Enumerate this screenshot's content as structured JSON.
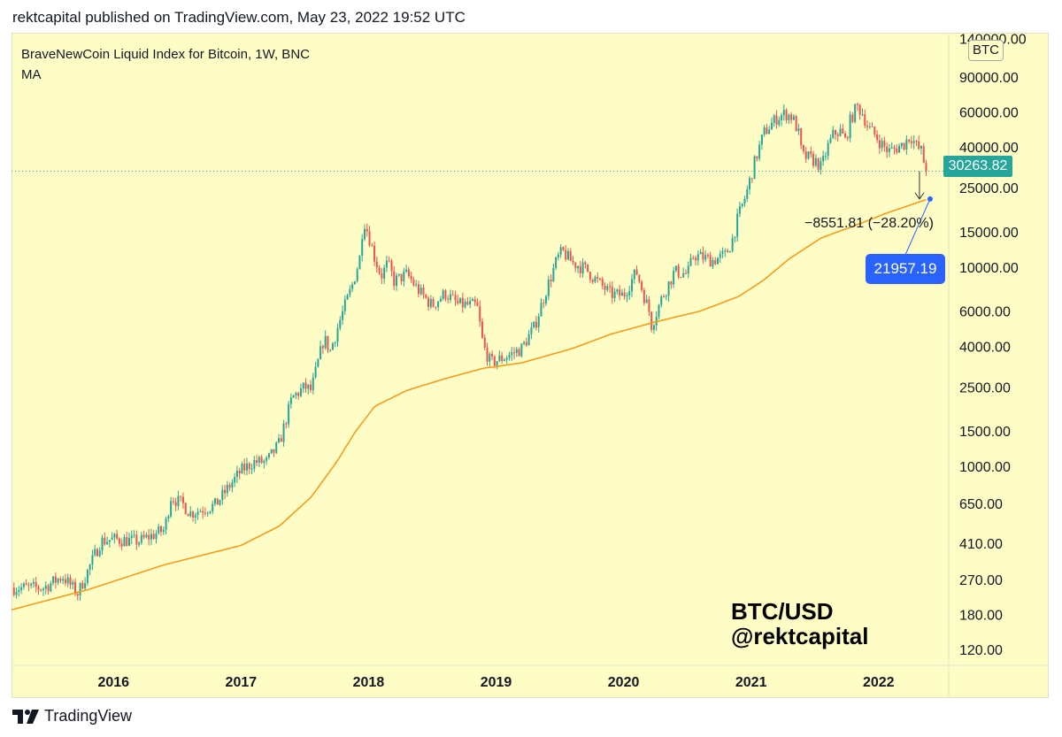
{
  "header": {
    "publisher": "rektcapital published on TradingView.com, May 23, 2022 19:52 UTC"
  },
  "legend": {
    "symbol": "BraveNewCoin Liquid Index for Bitcoin, 1W, BNC",
    "indicator": "MA"
  },
  "currency": "BTC",
  "watermark": {
    "line1": "BTC/USD",
    "line2": "@rektcapital"
  },
  "footer": {
    "brand": "TradingView",
    "logo_icon": "tradingview-logo-icon"
  },
  "colors": {
    "background": "#fefdc6",
    "up": "#26a69a",
    "down": "#ef5350",
    "ma": "#f59c1a",
    "target": "#2962ff"
  },
  "chart_data": {
    "type": "candlestick",
    "title": "BraveNewCoin Liquid Index for Bitcoin, 1W, BNC",
    "scale": "log",
    "ylim": [
      100,
      150000
    ],
    "x_range": [
      2015.2,
      2022.55
    ],
    "x_ticks": [
      {
        "year": 2016,
        "label": "2016"
      },
      {
        "year": 2017,
        "label": "2017"
      },
      {
        "year": 2018,
        "label": "2018"
      },
      {
        "year": 2019,
        "label": "2019"
      },
      {
        "year": 2020,
        "label": "2020"
      },
      {
        "year": 2021,
        "label": "2021"
      },
      {
        "year": 2022,
        "label": "2022"
      }
    ],
    "y_ticks": [
      {
        "value": 140000,
        "label": "140000.00"
      },
      {
        "value": 90000,
        "label": "90000.00"
      },
      {
        "value": 60000,
        "label": "60000.00"
      },
      {
        "value": 40000,
        "label": "40000.00"
      },
      {
        "value": 25000,
        "label": "25000.00"
      },
      {
        "value": 15000,
        "label": "15000.00"
      },
      {
        "value": 10000,
        "label": "10000.00"
      },
      {
        "value": 6000,
        "label": "6000.00"
      },
      {
        "value": 4000,
        "label": "4000.00"
      },
      {
        "value": 2500,
        "label": "2500.00"
      },
      {
        "value": 1500,
        "label": "1500.00"
      },
      {
        "value": 1000,
        "label": "1000.00"
      },
      {
        "value": 650,
        "label": "650.00"
      },
      {
        "value": 410,
        "label": "410.00"
      },
      {
        "value": 270,
        "label": "270.00"
      },
      {
        "value": 180,
        "label": "180.00"
      },
      {
        "value": 120,
        "label": "120.00"
      }
    ],
    "price_anchors": [
      [
        2015.2,
        245
      ],
      [
        2015.45,
        245
      ],
      [
        2015.6,
        280
      ],
      [
        2015.72,
        230
      ],
      [
        2015.8,
        300
      ],
      [
        2015.9,
        420
      ],
      [
        2016.0,
        430
      ],
      [
        2016.2,
        420
      ],
      [
        2016.4,
        480
      ],
      [
        2016.45,
        700
      ],
      [
        2016.55,
        640
      ],
      [
        2016.6,
        580
      ],
      [
        2016.8,
        640
      ],
      [
        2016.9,
        780
      ],
      [
        2017.0,
        950
      ],
      [
        2017.1,
        1050
      ],
      [
        2017.2,
        1050
      ],
      [
        2017.3,
        1300
      ],
      [
        2017.4,
        2200
      ],
      [
        2017.5,
        2500
      ],
      [
        2017.55,
        2400
      ],
      [
        2017.65,
        4400
      ],
      [
        2017.7,
        3800
      ],
      [
        2017.8,
        6000
      ],
      [
        2017.87,
        8000
      ],
      [
        2017.93,
        11000
      ],
      [
        2017.96,
        17500
      ],
      [
        2018.0,
        14500
      ],
      [
        2018.05,
        11000
      ],
      [
        2018.1,
        9000
      ],
      [
        2018.15,
        10500
      ],
      [
        2018.2,
        8500
      ],
      [
        2018.3,
        9200
      ],
      [
        2018.4,
        7500
      ],
      [
        2018.5,
        6400
      ],
      [
        2018.6,
        7400
      ],
      [
        2018.7,
        6500
      ],
      [
        2018.85,
        6400
      ],
      [
        2018.9,
        4000
      ],
      [
        2018.96,
        3300
      ],
      [
        2019.1,
        3600
      ],
      [
        2019.2,
        3900
      ],
      [
        2019.3,
        5000
      ],
      [
        2019.4,
        7900
      ],
      [
        2019.48,
        11000
      ],
      [
        2019.52,
        12000
      ],
      [
        2019.6,
        10500
      ],
      [
        2019.7,
        9800
      ],
      [
        2019.8,
        8400
      ],
      [
        2019.9,
        7300
      ],
      [
        2020.0,
        7200
      ],
      [
        2020.1,
        9500
      ],
      [
        2020.2,
        6000
      ],
      [
        2020.22,
        5100
      ],
      [
        2020.3,
        7000
      ],
      [
        2020.4,
        9500
      ],
      [
        2020.5,
        9200
      ],
      [
        2020.55,
        11500
      ],
      [
        2020.7,
        10800
      ],
      [
        2020.8,
        11500
      ],
      [
        2020.85,
        13500
      ],
      [
        2020.9,
        18000
      ],
      [
        2020.96,
        23000
      ],
      [
        2021.03,
        34000
      ],
      [
        2021.1,
        47000
      ],
      [
        2021.2,
        56000
      ],
      [
        2021.27,
        59000
      ],
      [
        2021.32,
        57000
      ],
      [
        2021.37,
        48000
      ],
      [
        2021.4,
        36000
      ],
      [
        2021.45,
        35500
      ],
      [
        2021.52,
        33500
      ],
      [
        2021.55,
        31500
      ],
      [
        2021.6,
        40000
      ],
      [
        2021.65,
        47000
      ],
      [
        2021.7,
        48000
      ],
      [
        2021.74,
        43000
      ],
      [
        2021.78,
        55000
      ],
      [
        2021.83,
        64000
      ],
      [
        2021.87,
        60000
      ],
      [
        2021.92,
        50000
      ],
      [
        2021.96,
        47000
      ],
      [
        2022.03,
        41000
      ],
      [
        2022.08,
        38000
      ],
      [
        2022.12,
        39000
      ],
      [
        2022.2,
        41500
      ],
      [
        2022.25,
        46000
      ],
      [
        2022.3,
        40000
      ],
      [
        2022.34,
        38000
      ],
      [
        2022.36,
        32000
      ],
      [
        2022.38,
        29000
      ],
      [
        2022.39,
        30263.82
      ]
    ],
    "ma_anchors": [
      [
        2015.2,
        190
      ],
      [
        2015.8,
        240
      ],
      [
        2016.4,
        320
      ],
      [
        2017.0,
        400
      ],
      [
        2017.3,
        500
      ],
      [
        2017.55,
        700
      ],
      [
        2017.75,
        1050
      ],
      [
        2017.9,
        1500
      ],
      [
        2018.05,
        2000
      ],
      [
        2018.3,
        2400
      ],
      [
        2018.6,
        2750
      ],
      [
        2018.9,
        3100
      ],
      [
        2019.2,
        3300
      ],
      [
        2019.6,
        3900
      ],
      [
        2019.9,
        4600
      ],
      [
        2020.25,
        5300
      ],
      [
        2020.6,
        6000
      ],
      [
        2020.9,
        7100
      ],
      [
        2021.1,
        8600
      ],
      [
        2021.3,
        11000
      ],
      [
        2021.55,
        14000
      ],
      [
        2021.8,
        16000
      ],
      [
        2022.05,
        18500
      ],
      [
        2022.25,
        20500
      ],
      [
        2022.39,
        21957.19
      ]
    ],
    "last_price": 30263.82,
    "last_price_label": "30263.82",
    "ma_target": 21957.19,
    "ma_target_label": "21957.19",
    "measure_label": "−8551.81 (−28.20%)",
    "measure_change": -8551.81,
    "measure_change_pct": -28.2
  }
}
